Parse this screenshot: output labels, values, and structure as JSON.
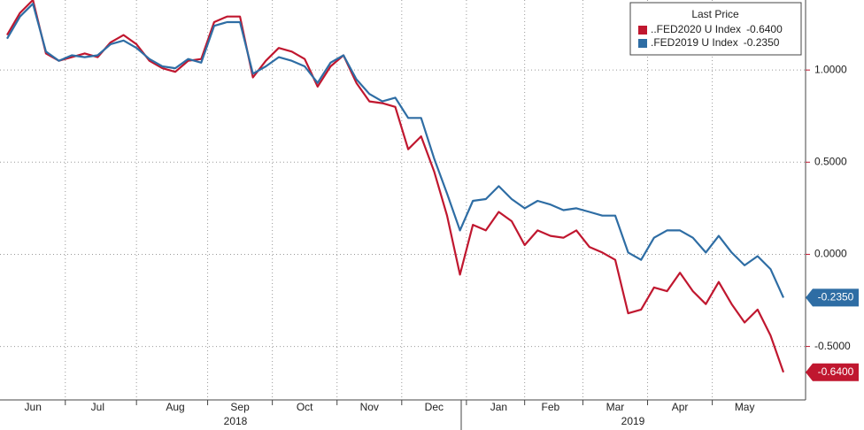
{
  "chart_data": {
    "type": "line",
    "categories": [
      null,
      null,
      "Jun",
      null,
      null,
      null,
      null,
      "Jul",
      null,
      null,
      null,
      null,
      null,
      "Aug",
      null,
      null,
      null,
      null,
      "Sep",
      null,
      null,
      null,
      null,
      "Oct",
      null,
      null,
      null,
      null,
      "Nov",
      null,
      null,
      null,
      null,
      "Dec",
      null,
      null,
      null,
      null,
      "Jan",
      null,
      null,
      null,
      "Feb",
      null,
      null,
      null,
      null,
      "Mar",
      null,
      null,
      null,
      null,
      "Apr",
      null,
      null,
      null,
      null,
      "May",
      null,
      null,
      null
    ],
    "years": [
      "2018",
      "2019"
    ],
    "series": [
      {
        "name": "..FED2020 U Index",
        "color": "#c0172f",
        "last_value_label": "-0.6400",
        "values": [
          1.19,
          1.31,
          1.38,
          1.09,
          1.05,
          1.07,
          1.09,
          1.07,
          1.15,
          1.19,
          1.14,
          1.05,
          1.01,
          0.99,
          1.05,
          1.06,
          1.26,
          1.29,
          1.29,
          0.96,
          1.05,
          1.12,
          1.1,
          1.06,
          0.91,
          1.02,
          1.08,
          0.93,
          0.83,
          0.82,
          0.8,
          0.57,
          0.64,
          0.45,
          0.21,
          -0.11,
          0.16,
          0.13,
          0.23,
          0.18,
          0.05,
          0.13,
          0.1,
          0.09,
          0.13,
          0.04,
          0.01,
          -0.03,
          -0.32,
          -0.3,
          -0.18,
          -0.2,
          -0.1,
          -0.2,
          -0.27,
          -0.15,
          -0.27,
          -0.37,
          -0.3,
          -0.44,
          -0.64
        ]
      },
      {
        "name": ".FED2019 U Index",
        "color": "#2e6da4",
        "last_value_label": "-0.2350",
        "values": [
          1.17,
          1.29,
          1.36,
          1.1,
          1.05,
          1.08,
          1.07,
          1.08,
          1.14,
          1.16,
          1.12,
          1.06,
          1.02,
          1.01,
          1.06,
          1.04,
          1.24,
          1.26,
          1.26,
          0.98,
          1.02,
          1.07,
          1.05,
          1.02,
          0.93,
          1.04,
          1.08,
          0.95,
          0.87,
          0.83,
          0.85,
          0.74,
          0.74,
          0.52,
          0.33,
          0.13,
          0.29,
          0.3,
          0.37,
          0.3,
          0.25,
          0.29,
          0.27,
          0.24,
          0.25,
          0.23,
          0.21,
          0.21,
          0.01,
          -0.03,
          0.09,
          0.13,
          0.13,
          0.09,
          0.01,
          0.1,
          0.01,
          -0.06,
          -0.01,
          -0.08,
          -0.235
        ]
      }
    ],
    "legend_title": "Last Price",
    "legend": "upper right",
    "ylim": [
      -0.79,
      1.38
    ],
    "yticks": [
      {
        "value": -0.5,
        "label": "-0.5000"
      },
      {
        "value": 0,
        "label": "0.0000"
      },
      {
        "value": 0.5,
        "label": "0.5000"
      },
      {
        "value": 1,
        "label": "1.0000"
      }
    ],
    "y_axis_side": "right",
    "grid": true
  }
}
